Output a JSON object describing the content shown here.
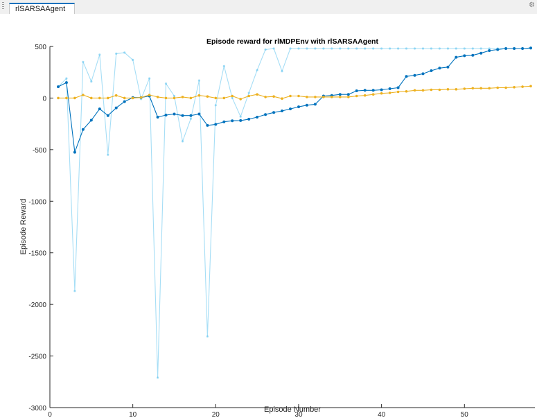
{
  "window": {
    "tab_label": "rlSARSAAgent",
    "options_icon": "gear-icon"
  },
  "chart_data": {
    "type": "line",
    "title": "Episode reward for rlMDPEnv with rlSARSAAgent",
    "xlabel": "Episode Number",
    "ylabel": "Episode Reward",
    "xlim": [
      0,
      58.5
    ],
    "ylim": [
      -3000,
      500
    ],
    "x_ticks": [
      0,
      10,
      20,
      30,
      40,
      50
    ],
    "y_ticks": [
      -3000,
      -2500,
      -2000,
      -1500,
      -1000,
      -500,
      0,
      500
    ],
    "grid": false,
    "legend": "none",
    "x": [
      1,
      2,
      3,
      4,
      5,
      6,
      7,
      8,
      9,
      10,
      11,
      12,
      13,
      14,
      15,
      16,
      17,
      18,
      19,
      20,
      21,
      22,
      23,
      24,
      25,
      26,
      27,
      28,
      29,
      30,
      31,
      32,
      33,
      34,
      35,
      36,
      37,
      38,
      39,
      40,
      41,
      42,
      43,
      44,
      45,
      46,
      47,
      48,
      49,
      50,
      51,
      52,
      53,
      54,
      55,
      56,
      57,
      58
    ],
    "series": [
      {
        "color": "#4dbeee",
        "opacity": 0.5,
        "marker_size": 1.6,
        "values": [
          110,
          190,
          -1870,
          350,
          160,
          420,
          -550,
          430,
          440,
          370,
          -10,
          190,
          -2710,
          140,
          20,
          -420,
          -200,
          170,
          -2310,
          -70,
          310,
          0,
          -180,
          50,
          270,
          470,
          480,
          260,
          480,
          480,
          480,
          480,
          480,
          480,
          480,
          480,
          480,
          480,
          480,
          480,
          480,
          480,
          480,
          480,
          480,
          480,
          480,
          480,
          480,
          480,
          480,
          480,
          480,
          480,
          480,
          480,
          480,
          480
        ]
      },
      {
        "color": "#0072bd",
        "opacity": 1,
        "marker_size": 2,
        "values": [
          110,
          150,
          -525,
          -305,
          -215,
          -105,
          -170,
          -95,
          -35,
          5,
          5,
          20,
          -185,
          -165,
          -155,
          -170,
          -170,
          -155,
          -265,
          -255,
          -230,
          -220,
          -218,
          -205,
          -185,
          -160,
          -140,
          -125,
          -105,
          -85,
          -70,
          -60,
          20,
          25,
          35,
          35,
          70,
          75,
          75,
          80,
          90,
          100,
          210,
          220,
          235,
          265,
          290,
          300,
          395,
          410,
          415,
          435,
          460,
          470,
          480,
          480,
          480,
          485
        ]
      },
      {
        "color": "#edb120",
        "opacity": 1,
        "marker_size": 1.8,
        "values": [
          0,
          0,
          0,
          30,
          0,
          0,
          0,
          25,
          0,
          0,
          5,
          30,
          10,
          0,
          0,
          10,
          0,
          25,
          15,
          0,
          0,
          20,
          -10,
          20,
          35,
          10,
          15,
          -5,
          20,
          20,
          10,
          10,
          10,
          10,
          10,
          10,
          20,
          25,
          35,
          45,
          50,
          60,
          65,
          75,
          75,
          80,
          80,
          85,
          85,
          90,
          95,
          95,
          95,
          100,
          100,
          105,
          110,
          115
        ]
      }
    ]
  }
}
